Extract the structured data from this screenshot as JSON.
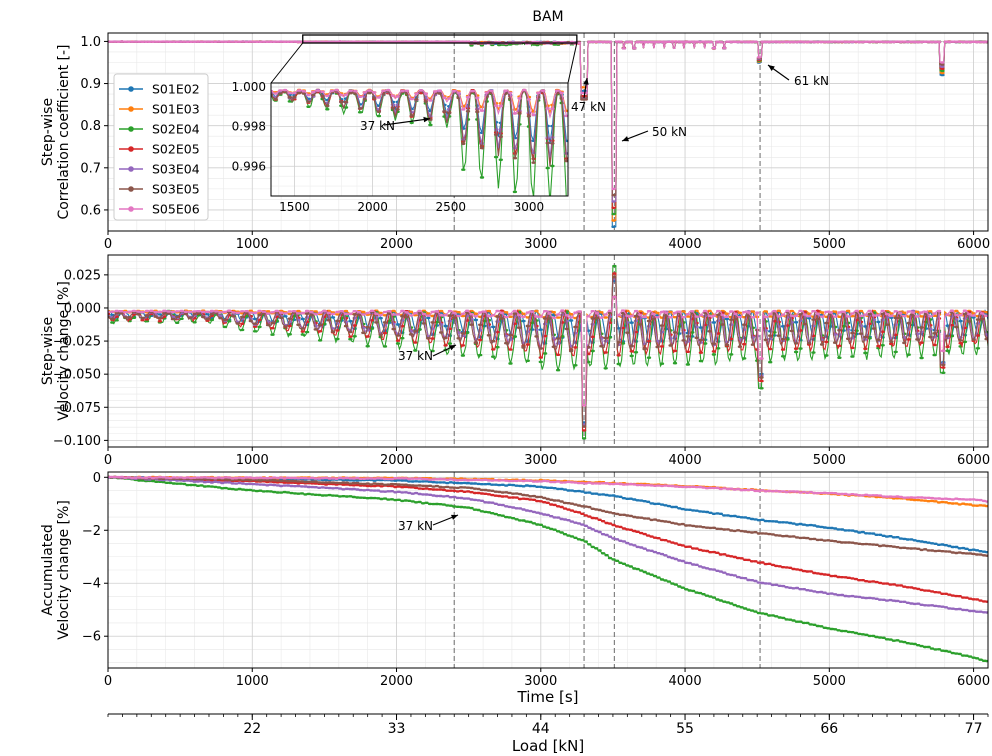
{
  "figure": {
    "title": "BAM",
    "xlabel": "Time [s]",
    "x2label": "Load [kN]",
    "x2ticks": [
      "22",
      "33",
      "44",
      "55",
      "66",
      "77"
    ],
    "x2tick_times": [
      1000,
      2000,
      3000,
      4000,
      5000,
      6000
    ],
    "marker_times": [
      2400,
      3300,
      3510,
      4520
    ],
    "colors": [
      "#1f77b4",
      "#ff7f0e",
      "#2ca02c",
      "#d62728",
      "#9467bd",
      "#8c564b",
      "#e377c2"
    ],
    "series_names": [
      "S01E02",
      "S01E03",
      "S02E04",
      "S02E05",
      "S03E04",
      "S03E05",
      "S05E06"
    ]
  },
  "chart_data": [
    {
      "type": "line",
      "id": "correlation",
      "ylabel_top": "Step-wise",
      "ylabel_bottom": "Correlation coefficient [-]",
      "xlim": [
        0,
        6100
      ],
      "ylim": [
        0.55,
        1.02
      ],
      "xticks": [
        0,
        1000,
        2000,
        3000,
        4000,
        5000,
        6000
      ],
      "yticks": [
        0.6,
        0.7,
        0.8,
        0.9,
        1.0
      ],
      "ytick_labels": [
        "0.6",
        "0.7",
        "0.8",
        "0.9",
        "1.0"
      ],
      "grid": true,
      "legend": "left",
      "annotations": [
        {
          "text": "47 kN",
          "x": 3300,
          "y": 0.9
        },
        {
          "text": "50 kN",
          "x": 3510,
          "y": 0.76
        },
        {
          "text": "61 kN",
          "x": 4520,
          "y": 0.96
        }
      ],
      "inset": {
        "xlim": [
          1350,
          3250
        ],
        "ylim": [
          0.9945,
          1.0002
        ],
        "xticks": [
          1500,
          2000,
          2500,
          3000
        ],
        "yticks": [
          0.996,
          0.998,
          1.0
        ],
        "ytick_labels": [
          "0.996",
          "0.998",
          "1.000"
        ],
        "annotation": {
          "text": "37 kN",
          "x": 2400,
          "y": 0.9985
        }
      }
    },
    {
      "type": "line",
      "id": "stepwise_velocity",
      "ylabel_top": "Step-wise",
      "ylabel_bottom": "Velocity change [%]",
      "xlim": [
        0,
        6100
      ],
      "ylim": [
        -0.105,
        0.04
      ],
      "xticks": [
        0,
        1000,
        2000,
        3000,
        4000,
        5000,
        6000
      ],
      "yticks": [
        0.025,
        0,
        -0.025,
        -0.05,
        -0.075,
        -0.1
      ],
      "ytick_labels": [
        "0.025",
        "0.000",
        "−0.025",
        "−0.050",
        "−0.075",
        "−0.100"
      ],
      "grid": true,
      "annotations": [
        {
          "text": "37 kN",
          "x": 2400,
          "y": -0.02
        }
      ]
    },
    {
      "type": "line",
      "id": "accumulated_velocity",
      "ylabel_top": "Accumulated",
      "ylabel_bottom": "Velocity change [%]",
      "xlim": [
        0,
        6100
      ],
      "ylim": [
        -7.2,
        0.2
      ],
      "xticks": [
        0,
        1000,
        2000,
        3000,
        4000,
        5000,
        6000
      ],
      "yticks": [
        0,
        -2,
        -4,
        -6
      ],
      "ytick_labels": [
        "0",
        "−2",
        "−4",
        "−6"
      ],
      "grid": true,
      "annotations": [
        {
          "text": "37 kN",
          "x": 2400,
          "y": -1.3
        }
      ],
      "series": [
        {
          "name": "S01E02",
          "x": [
            0,
            2000,
            3000,
            3500,
            4000,
            4500,
            5000,
            5500,
            6000,
            6100
          ],
          "y": [
            0,
            -0.12,
            -0.35,
            -0.7,
            -1.2,
            -1.6,
            -1.9,
            -2.3,
            -2.75,
            -2.85
          ]
        },
        {
          "name": "S01E03",
          "x": [
            0,
            2000,
            3000,
            3500,
            4000,
            4500,
            5000,
            5500,
            6000,
            6100
          ],
          "y": [
            0,
            -0.03,
            -0.12,
            -0.22,
            -0.33,
            -0.48,
            -0.62,
            -0.8,
            -1.05,
            -1.1
          ]
        },
        {
          "name": "S02E04",
          "x": [
            0,
            1000,
            2000,
            2500,
            3000,
            3300,
            3500,
            4000,
            4500,
            5000,
            5500,
            6000,
            6100
          ],
          "y": [
            0,
            -0.5,
            -0.85,
            -1.15,
            -1.8,
            -2.4,
            -3.1,
            -4.2,
            -5.1,
            -5.7,
            -6.2,
            -6.8,
            -6.95
          ]
        },
        {
          "name": "S02E05",
          "x": [
            0,
            1000,
            2000,
            2500,
            3000,
            3300,
            3500,
            4000,
            4500,
            5000,
            5500,
            6000,
            6100
          ],
          "y": [
            0,
            -0.15,
            -0.35,
            -0.55,
            -0.9,
            -1.4,
            -1.8,
            -2.6,
            -3.2,
            -3.7,
            -4.1,
            -4.6,
            -4.7
          ]
        },
        {
          "name": "S03E04",
          "x": [
            0,
            1000,
            2000,
            2500,
            3000,
            3300,
            3500,
            4000,
            4500,
            5000,
            5500,
            6000,
            6100
          ],
          "y": [
            0,
            -0.25,
            -0.55,
            -0.8,
            -1.35,
            -1.8,
            -2.3,
            -3.2,
            -3.95,
            -4.4,
            -4.7,
            -5.05,
            -5.1
          ]
        },
        {
          "name": "S03E05",
          "x": [
            0,
            1000,
            2000,
            2500,
            3000,
            3300,
            3500,
            4000,
            4500,
            5000,
            5500,
            6000,
            6100
          ],
          "y": [
            0,
            -0.1,
            -0.28,
            -0.4,
            -0.75,
            -1.1,
            -1.35,
            -1.8,
            -2.1,
            -2.4,
            -2.65,
            -2.9,
            -2.95
          ]
        },
        {
          "name": "S05E06",
          "x": [
            0,
            2000,
            3000,
            3500,
            4000,
            4500,
            5000,
            5500,
            6000,
            6100
          ],
          "y": [
            0,
            -0.05,
            -0.15,
            -0.25,
            -0.35,
            -0.5,
            -0.6,
            -0.75,
            -0.85,
            -0.9
          ]
        }
      ]
    }
  ]
}
